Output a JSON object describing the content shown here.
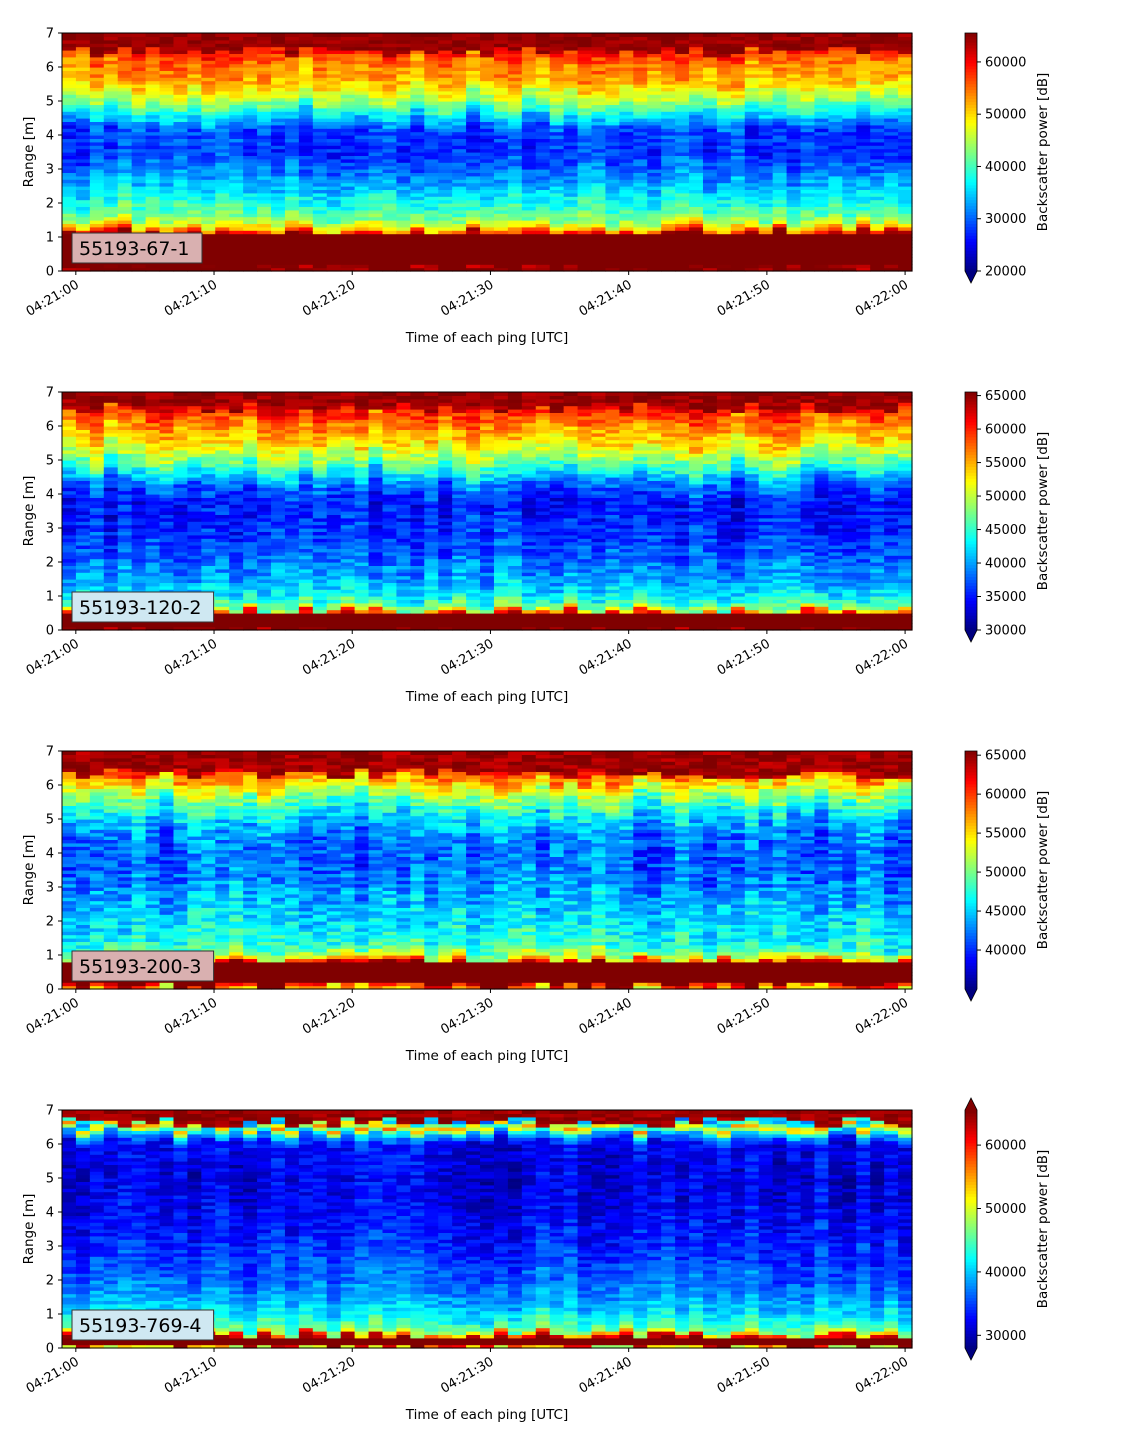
{
  "figure": {
    "colormap": "jet",
    "background": "#ffffff",
    "tag_colors": [
      "#d9b0b0",
      "#cfe8f2"
    ]
  },
  "chart_data": [
    {
      "type": "heatmap",
      "label": "55193-67-1",
      "label_bg": "#d9b0b0",
      "xlabel": "Time of each ping [UTC]",
      "ylabel": "Range [m]",
      "xlim": [
        "04:20:59",
        "04:22:00.5"
      ],
      "ylim": [
        0,
        7
      ],
      "xticks": [
        "04:21:00",
        "04:21:10",
        "04:21:20",
        "04:21:30",
        "04:21:40",
        "04:21:50",
        "04:22:00"
      ],
      "yticks": [
        0,
        1,
        2,
        3,
        4,
        5,
        6,
        7
      ],
      "colorbar": {
        "label": "Backscatter power [dB]",
        "vmin": 20000,
        "vmax": 65535,
        "extend": "min",
        "ticks": [
          20000,
          30000,
          40000,
          50000,
          60000
        ]
      },
      "field": {
        "seed": 11,
        "bottom_band": [
          0.2,
          1.1
        ],
        "bottom_val": 66000,
        "surface_from": 6.65,
        "profile": [
          [
            0,
            66000
          ],
          [
            0.2,
            66000
          ],
          [
            1.1,
            64000
          ],
          [
            1.25,
            52000
          ],
          [
            1.5,
            44000
          ],
          [
            1.8,
            40000
          ],
          [
            2.2,
            37000
          ],
          [
            2.8,
            32000
          ],
          [
            3.5,
            28000
          ],
          [
            4.2,
            28500
          ],
          [
            4.6,
            36000
          ],
          [
            5.1,
            45000
          ],
          [
            5.6,
            52000
          ],
          [
            6.2,
            55000
          ],
          [
            6.6,
            60000
          ],
          [
            7,
            66000
          ]
        ],
        "noise": 5500
      }
    },
    {
      "type": "heatmap",
      "label": "55193-120-2",
      "label_bg": "#cfe8f2",
      "xlabel": "Time of each ping [UTC]",
      "ylabel": "Range [m]",
      "xlim": [
        "04:20:59",
        "04:22:00.5"
      ],
      "ylim": [
        0,
        7
      ],
      "xticks": [
        "04:21:00",
        "04:21:10",
        "04:21:20",
        "04:21:30",
        "04:21:40",
        "04:21:50",
        "04:22:00"
      ],
      "yticks": [
        0,
        1,
        2,
        3,
        4,
        5,
        6,
        7
      ],
      "colorbar": {
        "label": "Backscatter power [dB]",
        "vmin": 30000,
        "vmax": 65535,
        "extend": "min",
        "ticks": [
          30000,
          35000,
          40000,
          45000,
          50000,
          55000,
          60000,
          65000
        ]
      },
      "field": {
        "seed": 23,
        "bottom_band": [
          0.1,
          0.5
        ],
        "bottom_val": 66000,
        "surface_from": 6.7,
        "profile": [
          [
            0,
            66000
          ],
          [
            0.1,
            66000
          ],
          [
            0.5,
            60000
          ],
          [
            0.65,
            48000
          ],
          [
            1,
            43000
          ],
          [
            1.5,
            40000
          ],
          [
            2.2,
            37500
          ],
          [
            3,
            35500
          ],
          [
            3.8,
            35000
          ],
          [
            4.3,
            38000
          ],
          [
            4.8,
            45000
          ],
          [
            5.4,
            52000
          ],
          [
            6,
            56000
          ],
          [
            6.5,
            60000
          ],
          [
            7,
            66000
          ]
        ],
        "noise": 5000
      }
    },
    {
      "type": "heatmap",
      "label": "55193-200-3",
      "label_bg": "#d9b0b0",
      "xlabel": "Time of each ping [UTC]",
      "ylabel": "Range [m]",
      "xlim": [
        "04:20:59",
        "04:22:00.5"
      ],
      "ylim": [
        0,
        7
      ],
      "xticks": [
        "04:21:00",
        "04:21:10",
        "04:21:20",
        "04:21:30",
        "04:21:40",
        "04:21:50",
        "04:22:00"
      ],
      "yticks": [
        0,
        1,
        2,
        3,
        4,
        5,
        6,
        7
      ],
      "colorbar": {
        "label": "Backscatter power [dB]",
        "vmin": 35000,
        "vmax": 65535,
        "extend": "min",
        "ticks": [
          40000,
          45000,
          50000,
          55000,
          60000,
          65000
        ]
      },
      "field": {
        "seed": 37,
        "bottom_band": [
          0.2,
          0.75
        ],
        "bottom_val": 66000,
        "surface_from": 6.5,
        "profile": [
          [
            0,
            56000
          ],
          [
            0.2,
            66000
          ],
          [
            0.75,
            64000
          ],
          [
            0.9,
            53000
          ],
          [
            1.2,
            48000
          ],
          [
            1.8,
            46000
          ],
          [
            2.5,
            44500
          ],
          [
            3.5,
            42000
          ],
          [
            4.3,
            42000
          ],
          [
            5,
            45000
          ],
          [
            5.6,
            50000
          ],
          [
            6.1,
            56000
          ],
          [
            6.5,
            61000
          ],
          [
            7,
            66000
          ]
        ],
        "noise": 5000
      }
    },
    {
      "type": "heatmap",
      "label": "55193-769-4",
      "label_bg": "#cfe8f2",
      "xlabel": "Time of each ping [UTC]",
      "ylabel": "Range [m]",
      "xlim": [
        "04:20:59",
        "04:22:00.5"
      ],
      "ylim": [
        0,
        7
      ],
      "xticks": [
        "04:21:00",
        "04:21:10",
        "04:21:20",
        "04:21:30",
        "04:21:40",
        "04:21:50",
        "04:22:00"
      ],
      "yticks": [
        0,
        1,
        2,
        3,
        4,
        5,
        6,
        7
      ],
      "colorbar": {
        "label": "Backscatter power [dB]",
        "vmin": 28000,
        "vmax": 65535,
        "extend": "both",
        "ticks": [
          30000,
          40000,
          50000,
          60000
        ]
      },
      "field": {
        "seed": 53,
        "bottom_band": [
          0.15,
          0.35
        ],
        "bottom_val": 66000,
        "surface_from": 6.85,
        "profile": [
          [
            0,
            50000
          ],
          [
            0.15,
            66000
          ],
          [
            0.35,
            62000
          ],
          [
            0.45,
            48000
          ],
          [
            0.8,
            43000
          ],
          [
            1.3,
            39500
          ],
          [
            2,
            36500
          ],
          [
            3,
            34000
          ],
          [
            4,
            32500
          ],
          [
            5,
            31500
          ],
          [
            6,
            32500
          ],
          [
            6.3,
            40000
          ],
          [
            6.5,
            55000
          ],
          [
            6.7,
            38000
          ],
          [
            7,
            45000
          ]
        ],
        "noise": 4500
      }
    }
  ]
}
